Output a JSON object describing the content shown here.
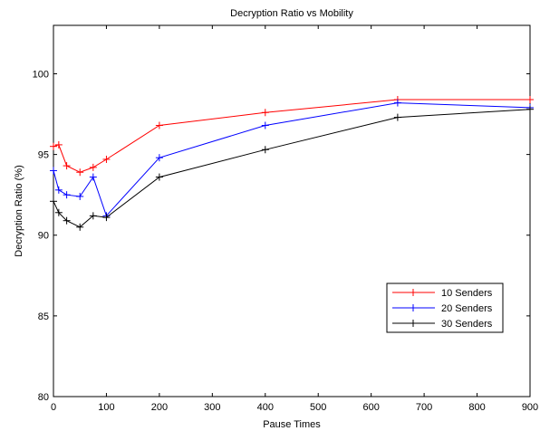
{
  "chart_data": {
    "type": "line",
    "title": "Decryption Ratio vs Mobility",
    "xlabel": "Pause Times",
    "ylabel": "Decryption Ratio (%)",
    "xlim": [
      0,
      900
    ],
    "ylim": [
      80,
      103
    ],
    "xticks": [
      0,
      100,
      200,
      300,
      400,
      500,
      600,
      700,
      800,
      900
    ],
    "yticks": [
      80,
      85,
      90,
      95,
      100
    ],
    "grid": false,
    "legend_position": "lower-right",
    "series": [
      {
        "name": "10 Senders",
        "color": "#ff0000",
        "marker": "plus",
        "x": [
          0,
          10,
          25,
          50,
          75,
          100,
          200,
          400,
          650,
          900
        ],
        "y": [
          95.5,
          95.6,
          94.3,
          93.9,
          94.2,
          94.7,
          96.8,
          97.6,
          98.4,
          98.4
        ]
      },
      {
        "name": "20 Senders",
        "color": "#0000ff",
        "marker": "plus",
        "x": [
          0,
          10,
          25,
          50,
          75,
          100,
          200,
          400,
          650,
          900
        ],
        "y": [
          94.0,
          92.8,
          92.5,
          92.4,
          93.6,
          91.2,
          94.8,
          96.8,
          98.2,
          97.9
        ]
      },
      {
        "name": "30 Senders",
        "color": "#000000",
        "marker": "plus",
        "x": [
          0,
          10,
          25,
          50,
          75,
          100,
          200,
          400,
          650,
          900
        ],
        "y": [
          92.1,
          91.4,
          90.9,
          90.5,
          91.2,
          91.1,
          93.6,
          95.3,
          97.3,
          97.8
        ]
      }
    ]
  }
}
